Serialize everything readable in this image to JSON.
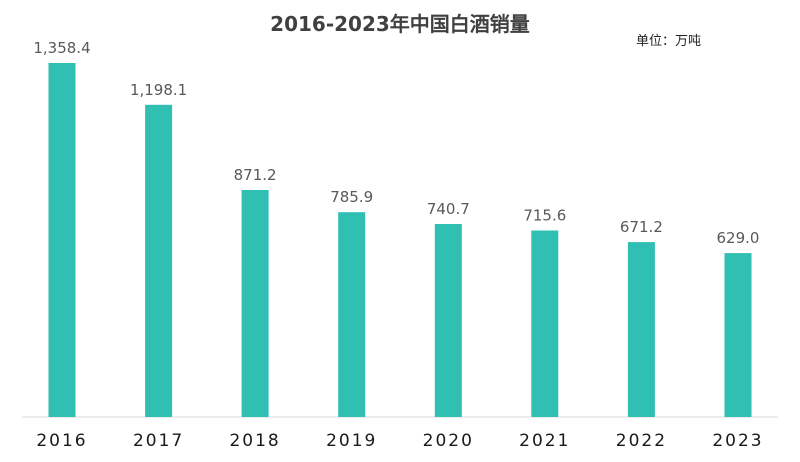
{
  "chart_data": {
    "type": "bar",
    "title": "2016-2023年中国白酒销量",
    "unit_label": "单位：万吨",
    "categories": [
      "2016",
      "2017",
      "2018",
      "2019",
      "2020",
      "2021",
      "2022",
      "2023"
    ],
    "values": [
      1358.4,
      1198.1,
      871.2,
      785.9,
      740.7,
      715.6,
      671.2,
      629.0
    ],
    "value_labels": [
      "1,358.4",
      "1,198.1",
      "871.2",
      "785.9",
      "740.7",
      "715.6",
      "671.2",
      "629.0"
    ],
    "xlabel": "",
    "ylabel": "",
    "ylim": [
      0,
      1358.4
    ],
    "grid": false,
    "legend": "none",
    "bar_color": "#2fbfb3"
  }
}
